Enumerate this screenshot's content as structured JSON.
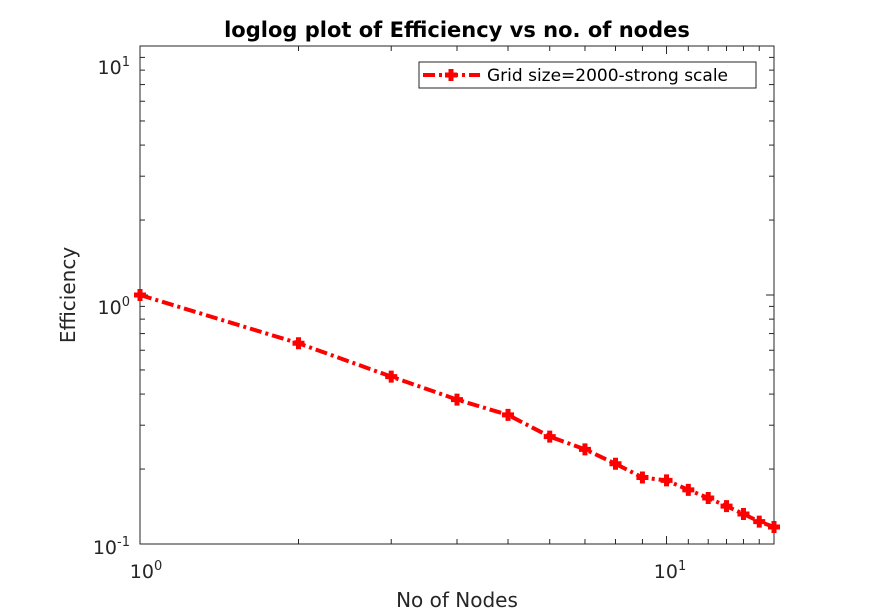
{
  "chart_data": {
    "type": "line",
    "title": "loglog plot of Efficiency vs no. of nodes",
    "xlabel": "No of Nodes",
    "ylabel": "Efficiency",
    "xscale": "log",
    "yscale": "log",
    "xlim": [
      1,
      16
    ],
    "ylim": [
      0.1,
      10
    ],
    "x_ticks": [
      {
        "base": "10",
        "exp": "0"
      },
      {
        "base": "10",
        "exp": "1"
      }
    ],
    "y_ticks": [
      {
        "base": "10",
        "exp": "-1"
      },
      {
        "base": "10",
        "exp": "0"
      },
      {
        "base": "10",
        "exp": "1"
      }
    ],
    "grid": false,
    "legend_position": "top-right",
    "series": [
      {
        "name": "Grid size=2000-strong scale",
        "color": "#ff0000",
        "line_style": "dash-dot",
        "marker": "plus",
        "x": [
          1,
          2,
          3,
          4,
          5,
          6,
          7,
          8,
          9,
          10,
          11,
          12,
          13,
          14,
          15,
          16
        ],
        "y": [
          1.0,
          0.64,
          0.47,
          0.38,
          0.33,
          0.27,
          0.24,
          0.21,
          0.185,
          0.18,
          0.165,
          0.153,
          0.142,
          0.132,
          0.123,
          0.117
        ]
      }
    ]
  }
}
